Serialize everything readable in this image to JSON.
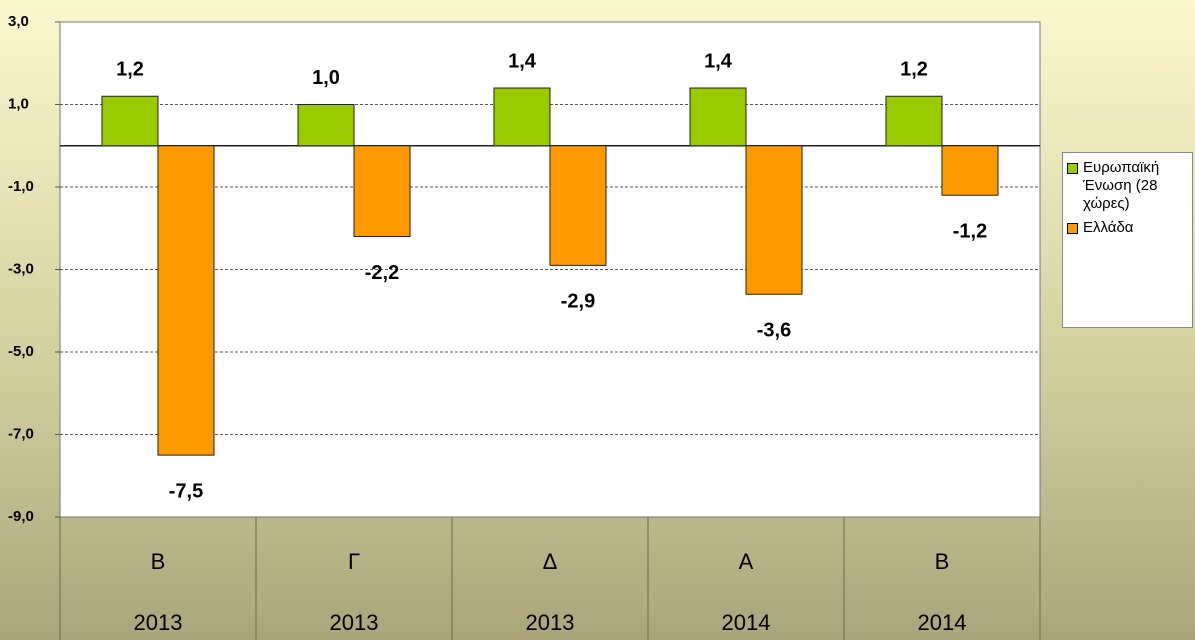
{
  "chart_data": {
    "type": "bar",
    "categories": [
      "Β",
      "Γ",
      "Δ",
      "Α",
      "Β"
    ],
    "years": [
      "2013",
      "2013",
      "2013",
      "2014",
      "2014"
    ],
    "series": [
      {
        "name": "Ευρωπαϊκή Ένωση (28 χώρες)",
        "color": "#99cc00",
        "values": [
          1.2,
          1.0,
          1.4,
          1.4,
          1.2
        ],
        "value_labels": [
          "1,2",
          "1,0",
          "1,4",
          "1,4",
          "1,2"
        ]
      },
      {
        "name": "Ελλάδα",
        "color": "#ff9900",
        "values": [
          -7.5,
          -2.2,
          -2.9,
          -3.6,
          -1.2
        ],
        "value_labels": [
          "-7,5",
          "-2,2",
          "-2,9",
          "-3,6",
          "-1,2"
        ]
      }
    ],
    "ylim": [
      -9,
      3
    ],
    "yticks": [
      {
        "value": 3,
        "label": "3,0"
      },
      {
        "value": 1,
        "label": "1,0"
      },
      {
        "value": -1,
        "label": "-1,0"
      },
      {
        "value": -3,
        "label": "-3,0"
      },
      {
        "value": -5,
        "label": "-5,0"
      },
      {
        "value": -7,
        "label": "-7,0"
      },
      {
        "value": -9,
        "label": "-9,0"
      }
    ],
    "grid": true,
    "legend": "right"
  }
}
